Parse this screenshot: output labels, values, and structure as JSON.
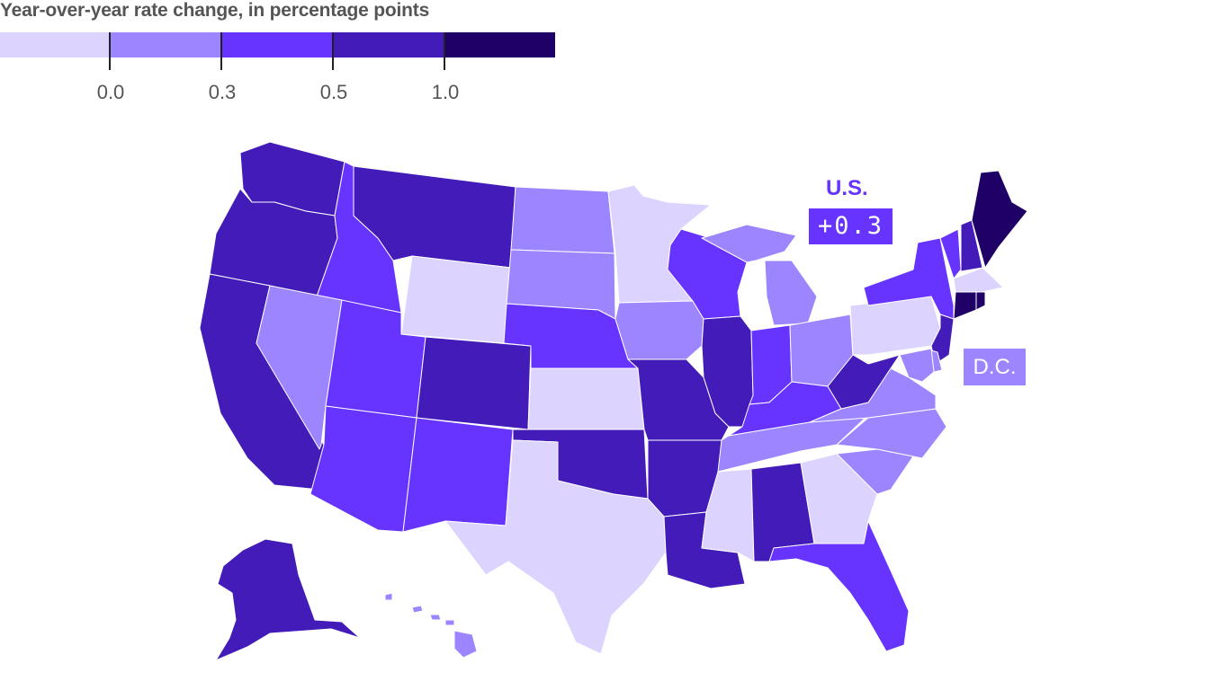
{
  "title": "Year-over-year rate change, in percentage points",
  "legend": {
    "bins": [
      {
        "color": "#dcd4ff"
      },
      {
        "color": "#9c85ff"
      },
      {
        "color": "#6633ff"
      },
      {
        "color": "#421bb8"
      },
      {
        "color": "#1f0066"
      }
    ],
    "thresholds": [
      "0.0",
      "0.3",
      "0.5",
      "1.0"
    ]
  },
  "us": {
    "label": "U.S.",
    "value": "+0.3",
    "color": "#6633ff"
  },
  "dc": {
    "label": "D.C.",
    "color": "#9c85ff"
  },
  "states": {
    "WA": 3,
    "OR": 3,
    "CA": 3,
    "ID": 2,
    "NV": 1,
    "MT": 3,
    "WY": 0,
    "UT": 2,
    "AZ": 2,
    "CO": 3,
    "NM": 2,
    "ND": 1,
    "SD": 1,
    "NE": 2,
    "KS": 0,
    "OK": 3,
    "TX": 0,
    "MN": 0,
    "IA": 1,
    "MO": 3,
    "AR": 3,
    "LA": 3,
    "WI": 2,
    "IL": 3,
    "MI": 1,
    "IN": 2,
    "OH": 1,
    "KY": 2,
    "TN": 1,
    "MS": 0,
    "AL": 3,
    "GA": 0,
    "FL": 2,
    "SC": 1,
    "NC": 1,
    "VA": 1,
    "WV": 3,
    "PA": 0,
    "NY": 2,
    "VT": 2,
    "NH": 3,
    "ME": 4,
    "MA": 0,
    "CT": 4,
    "RI": 4,
    "NJ": 3,
    "DE": 1,
    "MD": 1,
    "AK": 3,
    "HI": 1
  }
}
